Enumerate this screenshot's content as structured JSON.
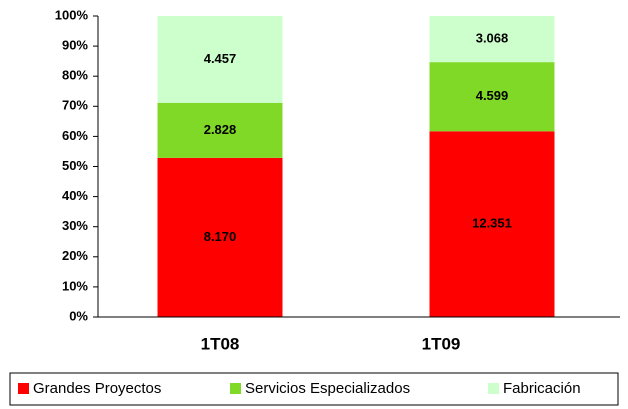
{
  "chart_data": {
    "type": "bar",
    "stacking": "percent",
    "categories": [
      "1T08",
      "1T09"
    ],
    "series": [
      {
        "name": "Grandes Proyectos",
        "color": "#ff0000",
        "values": [
          8170,
          12351
        ],
        "value_labels": [
          "8.170",
          "12.351"
        ]
      },
      {
        "name": "Servicios Especializados",
        "color": "#80d926",
        "values": [
          2828,
          4599
        ],
        "value_labels": [
          "2.828",
          "4.599"
        ]
      },
      {
        "name": "Fabricación",
        "color": "#ccffcc",
        "values": [
          4457,
          3068
        ],
        "value_labels": [
          "4.457",
          "3.068"
        ]
      }
    ],
    "ylim": [
      0,
      100
    ],
    "yticks": [
      {
        "value": 0,
        "label": "0%"
      },
      {
        "value": 10,
        "label": "10%"
      },
      {
        "value": 20,
        "label": "20%"
      },
      {
        "value": 30,
        "label": "30%"
      },
      {
        "value": 40,
        "label": "40%"
      },
      {
        "value": 50,
        "label": "50%"
      },
      {
        "value": 60,
        "label": "60%"
      },
      {
        "value": 70,
        "label": "70%"
      },
      {
        "value": 80,
        "label": "80%"
      },
      {
        "value": 90,
        "label": "90%"
      },
      {
        "value": 100,
        "label": "100%"
      }
    ],
    "legend": "bottom"
  }
}
